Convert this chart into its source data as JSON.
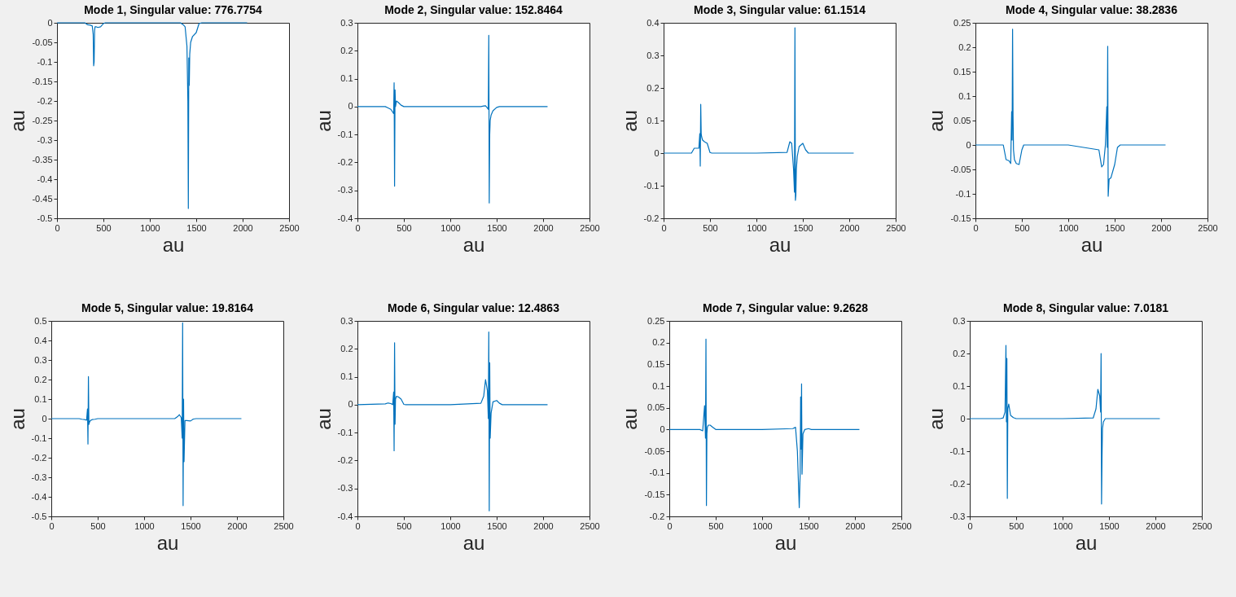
{
  "chart_data": [
    {
      "type": "line",
      "title": "Mode 1, Singular value: 776.7754",
      "xlabel": "au",
      "ylabel": "au",
      "color": "#0072bd",
      "xlim": [
        0,
        2500
      ],
      "xticks": [
        0,
        500,
        1000,
        1500,
        2000,
        2500
      ],
      "ylim": [
        -0.5,
        0
      ],
      "yticks": [
        -0.5,
        -0.45,
        -0.4,
        -0.35,
        -0.3,
        -0.25,
        -0.2,
        -0.15,
        -0.1,
        -0.05,
        0
      ],
      "x": [
        0,
        300,
        330,
        360,
        380,
        390,
        395,
        400,
        405,
        410,
        420,
        440,
        470,
        500,
        520,
        1000,
        1330,
        1360,
        1380,
        1400,
        1410,
        1415,
        1420,
        1425,
        1430,
        1440,
        1460,
        1500,
        1530,
        1560,
        2048
      ],
      "values": [
        0,
        0,
        -0.005,
        -0.006,
        -0.008,
        -0.03,
        -0.11,
        -0.1,
        -0.02,
        -0.01,
        -0.01,
        -0.012,
        -0.01,
        -0.002,
        0,
        0,
        0,
        -0.005,
        -0.01,
        -0.06,
        -0.2,
        -0.475,
        -0.09,
        -0.16,
        -0.08,
        -0.05,
        -0.035,
        -0.025,
        -0.002,
        0,
        0
      ]
    },
    {
      "type": "line",
      "title": "Mode 2, Singular value: 152.8464",
      "xlabel": "au",
      "ylabel": "au",
      "color": "#0072bd",
      "xlim": [
        0,
        2500
      ],
      "xticks": [
        0,
        500,
        1000,
        1500,
        2000,
        2500
      ],
      "ylim": [
        -0.4,
        0.3
      ],
      "yticks": [
        -0.4,
        -0.3,
        -0.2,
        -0.1,
        0,
        0.1,
        0.2,
        0.3
      ],
      "x": [
        0,
        300,
        330,
        360,
        380,
        390,
        395,
        400,
        405,
        410,
        420,
        440,
        470,
        500,
        520,
        1000,
        1330,
        1360,
        1380,
        1400,
        1410,
        1415,
        1420,
        1425,
        1430,
        1440,
        1460,
        1500,
        1530,
        1560,
        2048
      ],
      "values": [
        0,
        0,
        -0.005,
        -0.01,
        -0.02,
        -0.025,
        0.085,
        -0.285,
        0.06,
        0,
        0.02,
        0.015,
        0.005,
        0,
        0,
        0,
        0,
        0.002,
        0.003,
        -0.005,
        -0.01,
        0.255,
        -0.345,
        -0.1,
        -0.05,
        -0.03,
        -0.015,
        -0.003,
        0,
        0,
        0
      ]
    },
    {
      "type": "line",
      "title": "Mode 3, Singular value: 61.1514",
      "xlabel": "au",
      "ylabel": "au",
      "color": "#0072bd",
      "xlim": [
        0,
        2500
      ],
      "xticks": [
        0,
        500,
        1000,
        1500,
        2000,
        2500
      ],
      "ylim": [
        -0.2,
        0.4
      ],
      "yticks": [
        -0.2,
        -0.1,
        0,
        0.1,
        0.2,
        0.3,
        0.4
      ],
      "x": [
        0,
        300,
        330,
        360,
        380,
        390,
        395,
        400,
        405,
        410,
        420,
        440,
        470,
        500,
        520,
        1000,
        1330,
        1360,
        1380,
        1400,
        1410,
        1415,
        1420,
        1425,
        1430,
        1440,
        1460,
        1500,
        1530,
        1560,
        2048
      ],
      "values": [
        0,
        0,
        0.015,
        0.015,
        0.015,
        0.06,
        -0.04,
        0.15,
        0.06,
        0.05,
        0.04,
        0.035,
        0.03,
        0.002,
        0,
        0,
        0.002,
        0.035,
        0.03,
        -0.05,
        -0.12,
        0.385,
        -0.145,
        -0.13,
        -0.05,
        -0.01,
        0.02,
        0.03,
        0.01,
        0,
        0
      ]
    },
    {
      "type": "line",
      "title": "Mode 4, Singular value: 38.2836",
      "xlabel": "au",
      "ylabel": "au",
      "color": "#0072bd",
      "xlim": [
        0,
        2500
      ],
      "xticks": [
        0,
        500,
        1000,
        1500,
        2000,
        2500
      ],
      "ylim": [
        -0.15,
        0.25
      ],
      "yticks": [
        -0.15,
        -0.1,
        -0.05,
        0,
        0.05,
        0.1,
        0.15,
        0.2,
        0.25
      ],
      "x": [
        0,
        300,
        330,
        360,
        380,
        390,
        395,
        400,
        405,
        410,
        420,
        440,
        470,
        500,
        520,
        1000,
        1330,
        1360,
        1380,
        1400,
        1410,
        1415,
        1420,
        1425,
        1430,
        1440,
        1460,
        1500,
        1530,
        1560,
        2048
      ],
      "values": [
        0,
        0,
        -0.03,
        -0.032,
        -0.038,
        0.068,
        0.01,
        0.237,
        0.06,
        -0.01,
        -0.03,
        -0.038,
        -0.04,
        -0.01,
        0,
        0,
        -0.01,
        -0.045,
        -0.04,
        0,
        0.05,
        0.078,
        -0.005,
        0.202,
        -0.105,
        -0.07,
        -0.067,
        -0.04,
        -0.005,
        0,
        0
      ]
    },
    {
      "type": "line",
      "title": "Mode 5, Singular value: 19.8164",
      "xlabel": "au",
      "ylabel": "au",
      "color": "#0072bd",
      "xlim": [
        0,
        2500
      ],
      "xticks": [
        0,
        500,
        1000,
        1500,
        2000,
        2500
      ],
      "ylim": [
        -0.5,
        0.5
      ],
      "yticks": [
        -0.5,
        -0.4,
        -0.3,
        -0.2,
        -0.1,
        0,
        0.1,
        0.2,
        0.3,
        0.4,
        0.5
      ],
      "x": [
        0,
        300,
        330,
        360,
        380,
        390,
        395,
        400,
        405,
        410,
        420,
        440,
        470,
        500,
        520,
        1000,
        1330,
        1360,
        1380,
        1400,
        1410,
        1415,
        1420,
        1425,
        1430,
        1440,
        1460,
        1500,
        1530,
        1560,
        2048
      ],
      "values": [
        0,
        0,
        -0.003,
        -0.005,
        -0.008,
        0.05,
        -0.13,
        0.215,
        -0.03,
        -0.02,
        -0.01,
        -0.005,
        -0.003,
        0,
        0,
        0,
        0,
        0.01,
        0.02,
        0.005,
        -0.1,
        0.49,
        -0.445,
        0.1,
        -0.22,
        -0.01,
        -0.01,
        -0.012,
        -0.002,
        0,
        0
      ]
    },
    {
      "type": "line",
      "title": "Mode 6, Singular value: 12.4863",
      "xlabel": "au",
      "ylabel": "au",
      "color": "#0072bd",
      "xlim": [
        0,
        2500
      ],
      "xticks": [
        0,
        500,
        1000,
        1500,
        2000,
        2500
      ],
      "ylim": [
        -0.4,
        0.3
      ],
      "yticks": [
        -0.4,
        -0.3,
        -0.2,
        -0.1,
        0,
        0.1,
        0.2,
        0.3
      ],
      "x": [
        0,
        300,
        330,
        360,
        380,
        390,
        395,
        400,
        405,
        410,
        420,
        440,
        470,
        500,
        520,
        1000,
        1330,
        1360,
        1380,
        1400,
        1410,
        1415,
        1420,
        1425,
        1430,
        1440,
        1460,
        1500,
        1530,
        1560,
        2048
      ],
      "values": [
        0,
        0.003,
        0.006,
        0.004,
        0,
        0.045,
        -0.165,
        0.222,
        -0.07,
        0.02,
        0.03,
        0.028,
        0.02,
        0.001,
        0,
        0,
        0.005,
        0.03,
        0.09,
        0.05,
        -0.05,
        0.26,
        -0.38,
        0.15,
        -0.12,
        -0.03,
        0.01,
        0.015,
        0.005,
        0,
        0
      ]
    },
    {
      "type": "line",
      "title": "Mode 7, Singular value: 9.2628",
      "xlabel": "au",
      "ylabel": "au",
      "color": "#0072bd",
      "xlim": [
        0,
        2500
      ],
      "xticks": [
        0,
        500,
        1000,
        1500,
        2000,
        2500
      ],
      "ylim": [
        -0.2,
        0.25
      ],
      "yticks": [
        -0.2,
        -0.15,
        -0.1,
        -0.05,
        0,
        0.05,
        0.1,
        0.15,
        0.2,
        0.25
      ],
      "x": [
        0,
        300,
        330,
        360,
        380,
        390,
        395,
        400,
        405,
        410,
        420,
        440,
        470,
        500,
        520,
        1000,
        1330,
        1360,
        1380,
        1400,
        1410,
        1415,
        1420,
        1425,
        1430,
        1440,
        1460,
        1500,
        1530,
        1560,
        2048
      ],
      "values": [
        0,
        0,
        0,
        -0.003,
        0.055,
        -0.02,
        0.208,
        -0.175,
        -0.01,
        0.005,
        0.01,
        0.01,
        0.005,
        0,
        0,
        0,
        0.002,
        0.005,
        -0.05,
        -0.18,
        -0.1,
        0.075,
        -0.045,
        0.105,
        -0.103,
        -0.01,
        0,
        0.002,
        0,
        0,
        0
      ]
    },
    {
      "type": "line",
      "title": "Mode 8, Singular value: 7.0181",
      "xlabel": "au",
      "ylabel": "au",
      "color": "#0072bd",
      "xlim": [
        0,
        2500
      ],
      "xticks": [
        0,
        500,
        1000,
        1500,
        2000,
        2500
      ],
      "ylim": [
        -0.3,
        0.3
      ],
      "yticks": [
        -0.3,
        -0.2,
        -0.1,
        0,
        0.1,
        0.2,
        0.3
      ],
      "x": [
        0,
        300,
        330,
        360,
        380,
        390,
        395,
        400,
        405,
        410,
        420,
        440,
        470,
        500,
        520,
        1000,
        1330,
        1360,
        1380,
        1400,
        1410,
        1415,
        1420,
        1425,
        1430,
        1440,
        1460,
        1500,
        1530,
        1560,
        2048
      ],
      "values": [
        0,
        0,
        0,
        0.002,
        0.02,
        0.225,
        -0.01,
        0.185,
        -0.245,
        0.03,
        0.045,
        0.01,
        0.003,
        0,
        0,
        0,
        0.002,
        0.03,
        0.09,
        0.07,
        0.02,
        0.2,
        -0.262,
        -0.12,
        -0.03,
        -0.01,
        0,
        0,
        0,
        0,
        0
      ]
    }
  ]
}
